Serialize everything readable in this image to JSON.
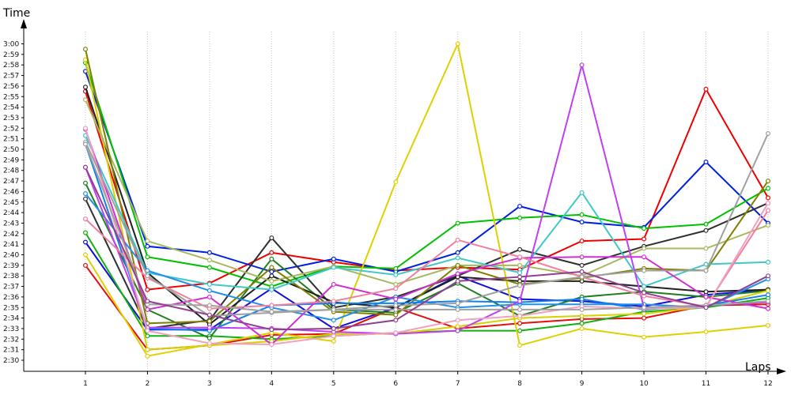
{
  "chart_data": {
    "type": "line",
    "xlabel": "Laps",
    "ylabel": "Time",
    "x": [
      1,
      2,
      3,
      4,
      5,
      6,
      7,
      8,
      9,
      10,
      11,
      12
    ],
    "x_tick_labels": [
      "1",
      "2",
      "3",
      "4",
      "5",
      "6",
      "7",
      "8",
      "9",
      "10",
      "11",
      "12"
    ],
    "ylim_seconds": [
      150,
      181
    ],
    "y_tick_labels": [
      "2:30",
      "2:31",
      "2:32",
      "2:33",
      "2:34",
      "2:35",
      "2:36",
      "2:37",
      "2:38",
      "2:39",
      "2:40",
      "2:41",
      "2:42",
      "2:43",
      "2:44",
      "2:45",
      "2:46",
      "2:47",
      "2:48",
      "2:49",
      "2:50",
      "2:51",
      "2:52",
      "2:53",
      "2:54",
      "2:55",
      "2:56",
      "2:57",
      "2:58",
      "2:59",
      "3:00"
    ],
    "grid": "vertical",
    "legend": "none",
    "y_unit": "lap time in seconds (2:30 = 150)",
    "series": [
      {
        "color": "#e01010",
        "values": [
          159.0,
          151.0,
          151.4,
          152.4,
          152.5,
          155.0,
          153.0,
          153.5,
          153.9,
          154.0,
          155.2,
          155.3
        ]
      },
      {
        "color": "#f00000",
        "values": [
          175.5,
          156.7,
          157.3,
          160.2,
          159.3,
          158.5,
          158.8,
          158.6,
          161.3,
          161.5,
          175.7,
          165.4
        ]
      },
      {
        "color": "#1010d8",
        "values": [
          161.2,
          152.9,
          152.9,
          156.8,
          153.0,
          155.0,
          158.0,
          155.8,
          155.6,
          155.1,
          156.2,
          156.7
        ]
      },
      {
        "color": "#0020e0",
        "values": [
          177.4,
          160.8,
          160.2,
          158.4,
          159.6,
          158.4,
          160.2,
          164.6,
          163.1,
          162.6,
          168.8,
          163.0
        ]
      },
      {
        "color": "#00c000",
        "values": [
          178.2,
          159.8,
          158.8,
          157.0,
          158.9,
          158.7,
          163.0,
          163.5,
          163.8,
          162.5,
          162.9,
          166.3
        ]
      },
      {
        "color": "#10b010",
        "values": [
          162.1,
          152.3,
          152.3,
          152.0,
          152.3,
          152.6,
          152.8,
          152.8,
          153.5,
          154.6,
          155.0,
          155.9
        ]
      },
      {
        "color": "#208020",
        "values": [
          166.8,
          154.8,
          152.1,
          159.6,
          154.8,
          154.5,
          157.3,
          154.2,
          156.0,
          156.5,
          156.0,
          156.6
        ]
      },
      {
        "color": "#303030",
        "values": [
          165.3,
          153.0,
          153.8,
          161.6,
          155.0,
          156.0,
          158.0,
          160.5,
          159.0,
          160.8,
          162.3,
          164.9
        ]
      },
      {
        "color": "#202020",
        "values": [
          175.9,
          158.3,
          153.4,
          158.0,
          155.5,
          155.0,
          157.9,
          157.5,
          157.5,
          157.0,
          156.5,
          156.7
        ]
      },
      {
        "color": "#e0d000",
        "values": [
          160.0,
          150.4,
          151.5,
          152.6,
          151.8,
          166.9,
          180.0,
          151.4,
          153.0,
          152.2,
          152.7,
          153.3
        ]
      },
      {
        "color": "#d8d000",
        "values": [
          178.5,
          151.0,
          151.4,
          151.8,
          152.5,
          152.5,
          153.2,
          154.0,
          154.2,
          154.4,
          155.1,
          156.6
        ]
      },
      {
        "color": "#a8b860",
        "values": [
          174.7,
          161.3,
          159.5,
          157.5,
          158.9,
          157.2,
          159.0,
          159.0,
          158.0,
          160.6,
          160.6,
          162.8
        ]
      },
      {
        "color": "#808000",
        "values": [
          179.5,
          153.5,
          153.7,
          158.8,
          154.6,
          154.3,
          159.0,
          157.2,
          157.8,
          158.7,
          158.5,
          167.0
        ]
      },
      {
        "color": "#40c8c8",
        "values": [
          171.3,
          158.3,
          157.2,
          156.7,
          158.8,
          158.1,
          159.7,
          158.3,
          165.9,
          157.0,
          159.1,
          159.3
        ]
      },
      {
        "color": "#2090e8",
        "values": [
          165.8,
          158.5,
          156.6,
          155.0,
          153.8,
          156.0,
          155.0,
          155.3,
          155.3,
          155.3,
          155.0,
          157.7
        ]
      },
      {
        "color": "#1080f0",
        "values": [
          170.5,
          153.0,
          152.8,
          155.2,
          155.4,
          155.4,
          155.6,
          155.5,
          155.8,
          154.8,
          155.2,
          156.2
        ]
      },
      {
        "color": "#c040f0",
        "values": [
          168.3,
          153.1,
          153.1,
          153.0,
          152.7,
          152.5,
          152.8,
          155.6,
          178.0,
          155.0,
          155.2,
          155.5
        ]
      },
      {
        "color": "#d030d0",
        "values": [
          171.9,
          154.8,
          156.0,
          151.5,
          157.2,
          155.8,
          158.2,
          159.7,
          159.8,
          159.8,
          156.0,
          154.9
        ]
      },
      {
        "color": "#f080a0",
        "values": [
          163.4,
          157.8,
          154.9,
          155.2,
          155.6,
          156.8,
          161.4,
          159.8,
          157.9,
          156.1,
          155.1,
          164.2
        ]
      },
      {
        "color": "#f0a0c0",
        "values": [
          172.0,
          152.8,
          151.6,
          151.5,
          152.3,
          152.6,
          153.8,
          154.2,
          155.1,
          154.9,
          155.0,
          164.9
        ]
      },
      {
        "color": "#a0a0a0",
        "values": [
          170.7,
          158.0,
          154.2,
          154.5,
          154.8,
          155.2,
          155.4,
          157.1,
          157.9,
          158.5,
          158.5,
          171.5
        ]
      },
      {
        "color": "#a0a0a0",
        "values": [
          170.5,
          155.3,
          155.2,
          154.6,
          154.8,
          154.8,
          154.8,
          154.8,
          154.8,
          155.0,
          155.2,
          155.6
        ]
      },
      {
        "color": "#904090",
        "values": [
          168.3,
          155.6,
          154.3,
          152.9,
          153.0,
          153.8,
          157.5,
          157.9,
          158.4,
          156.4,
          155.0,
          158.0
        ]
      }
    ]
  }
}
